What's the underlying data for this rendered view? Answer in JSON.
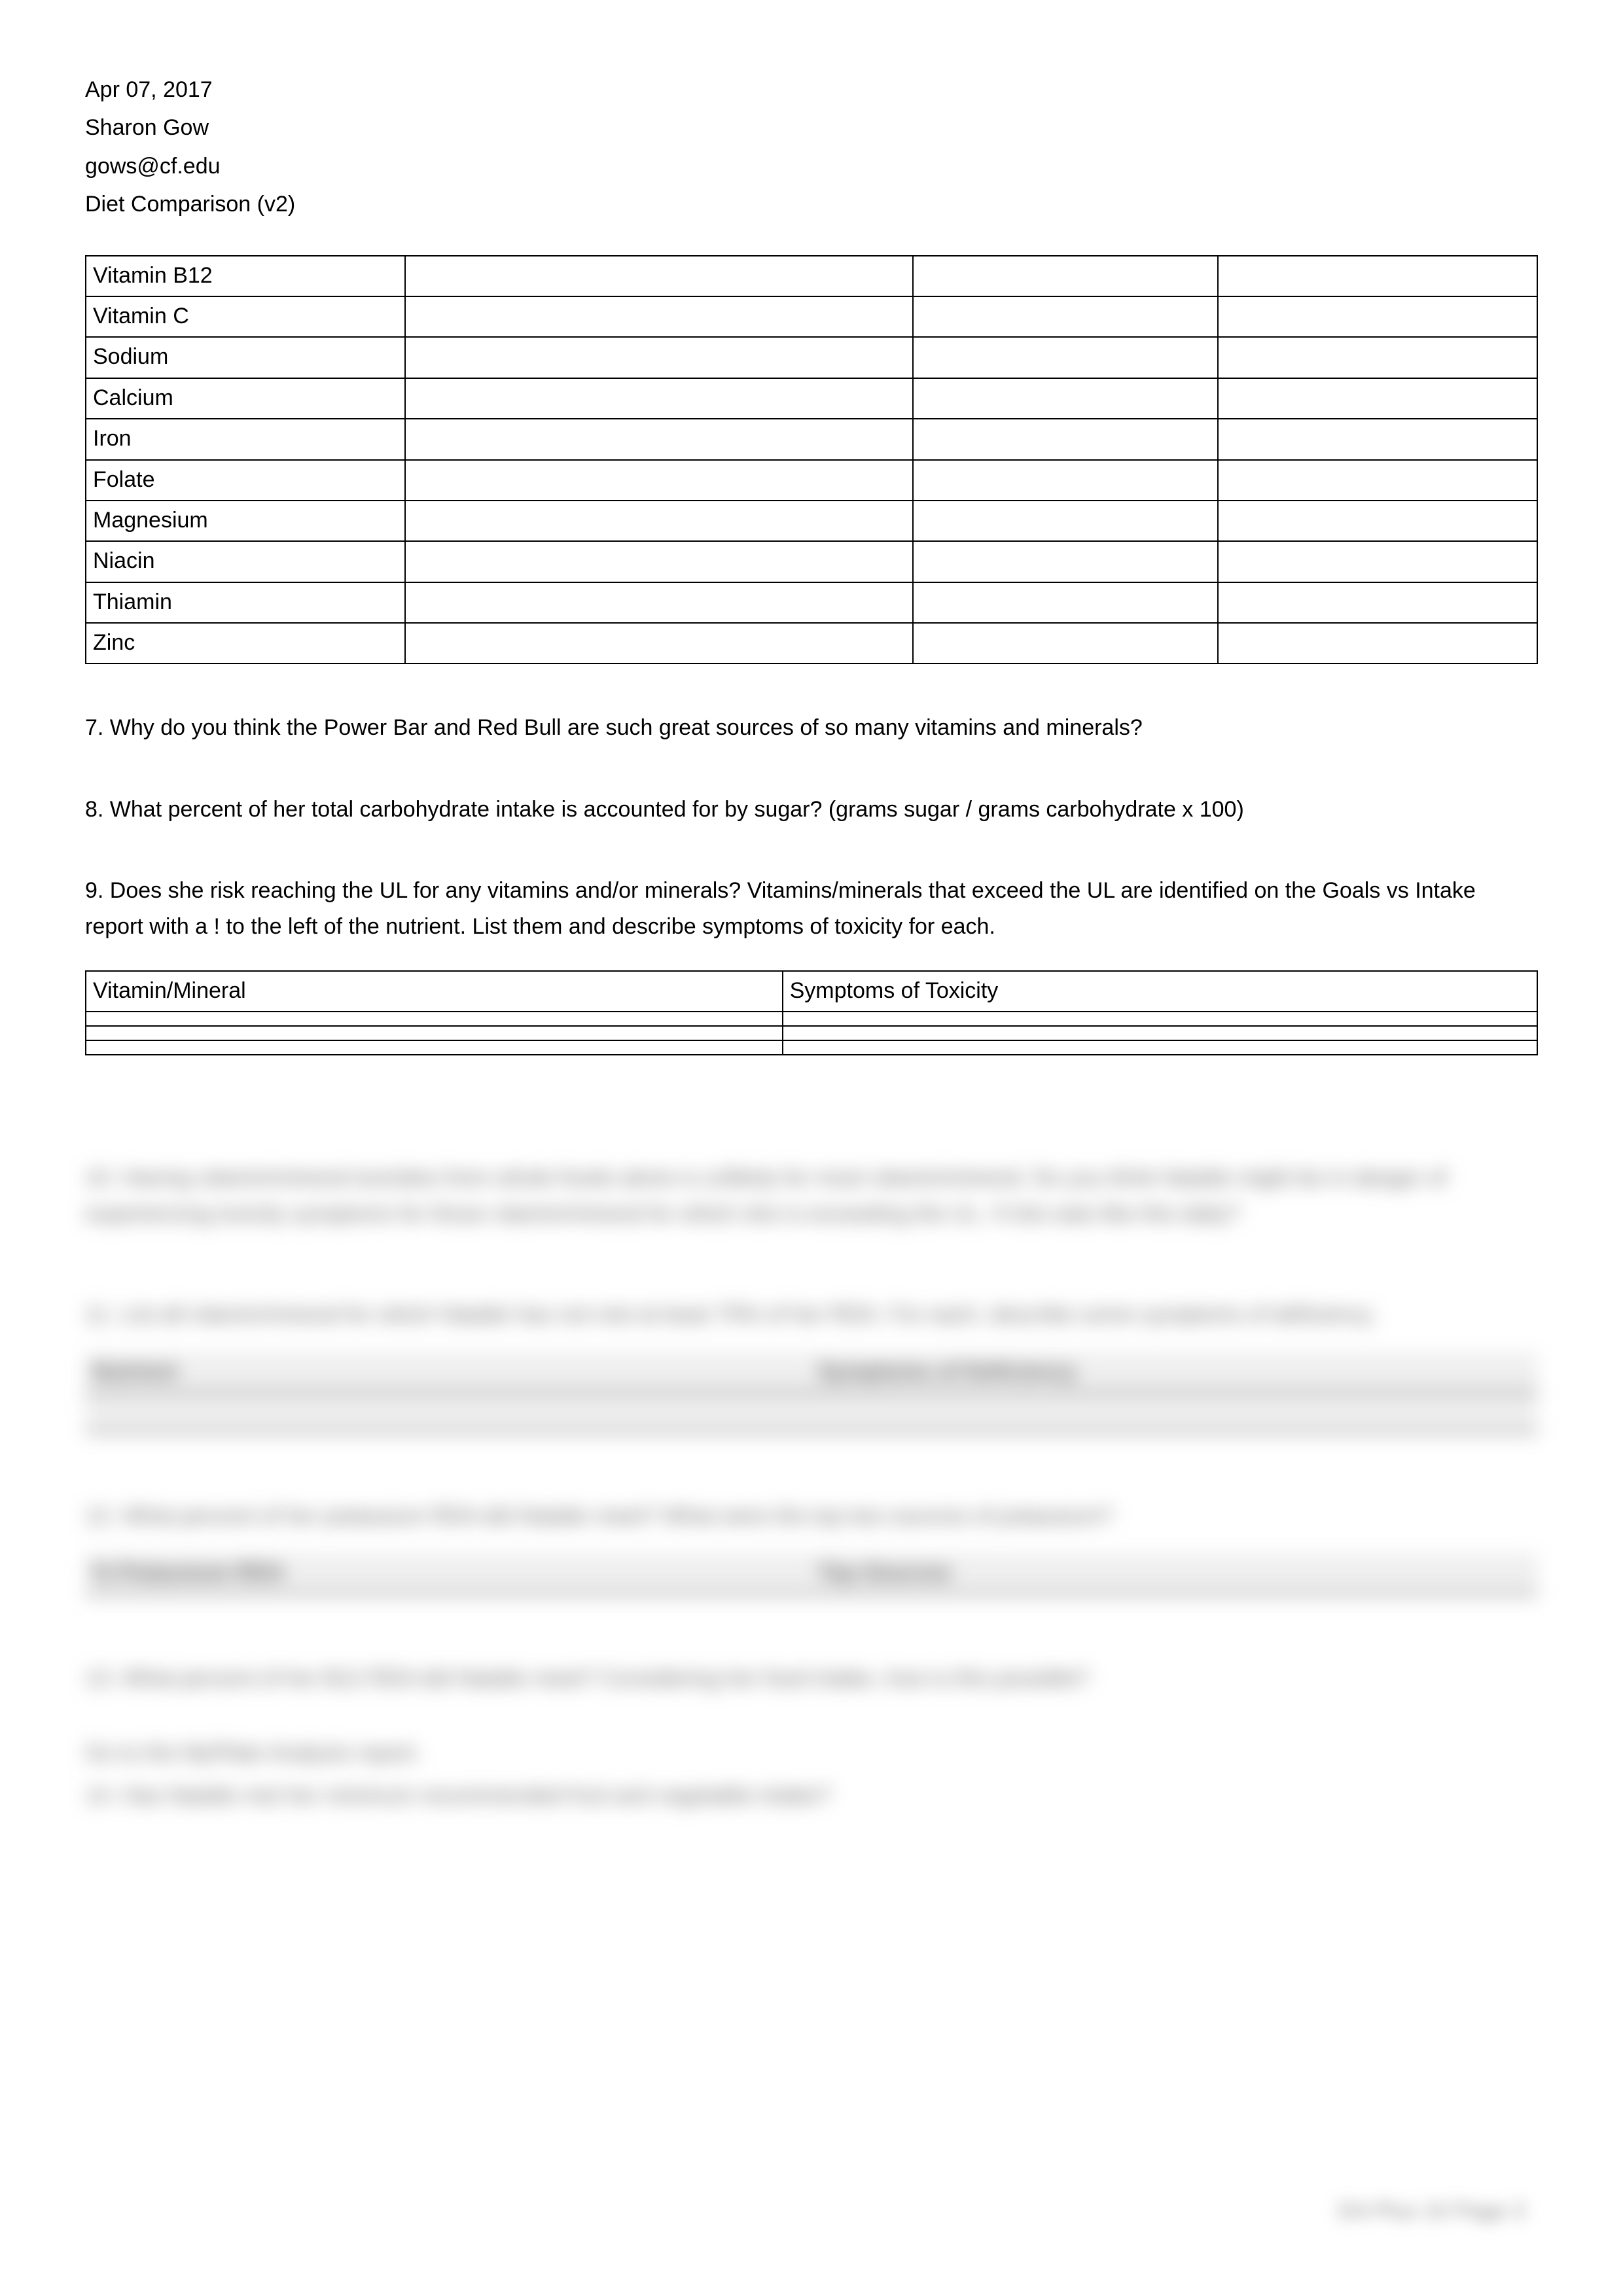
{
  "header": {
    "date": "Apr 07, 2017",
    "name": "Sharon Gow",
    "email": "gows@cf.edu",
    "title": "Diet Comparison (v2)"
  },
  "nutrients_table": {
    "rows": [
      [
        "Vitamin B12",
        "",
        "",
        ""
      ],
      [
        "Vitamin C",
        "",
        "",
        ""
      ],
      [
        "Sodium",
        "",
        "",
        ""
      ],
      [
        "Calcium",
        "",
        "",
        ""
      ],
      [
        "Iron",
        "",
        "",
        ""
      ],
      [
        "Folate",
        "",
        "",
        ""
      ],
      [
        "Magnesium",
        "",
        "",
        ""
      ],
      [
        "Niacin",
        "",
        "",
        ""
      ],
      [
        "Thiamin",
        "",
        "",
        ""
      ],
      [
        "Zinc",
        "",
        "",
        ""
      ]
    ]
  },
  "questions": {
    "q7": "7.  Why do you think the Power Bar and Red Bull are such great sources of so many vitamins and minerals?",
    "q8": "8. What percent of her total carbohydrate intake is accounted for by sugar? (grams sugar / grams carbohydrate x 100)",
    "q9": "9.  Does she risk reaching the UL for any vitamins and/or minerals?  Vitamins/minerals that exceed the UL are identified on the Goals vs Intake report with a ! to the left of the nutrient. List them and describe symptoms of toxicity for each."
  },
  "toxicity_table": {
    "headers": [
      "Vitamin/Mineral",
      "Symptoms of Toxicity"
    ],
    "rows": [
      [
        "",
        ""
      ],
      [
        "",
        ""
      ],
      [
        "",
        ""
      ]
    ]
  },
  "blurred": {
    "q10": "10.  Having vitamin/mineral toxicities from whole foods alone is unlikely for most vitamin/mineral.  Do you think Natalie might be in danger of experiencing toxicity symptoms for those vitamin/mineral for which she is exceeding the UL.  If she eats like this daily?",
    "q11": "11.  List all vitamin/mineral for which Natalie has not met at least 75% of her RDA.  For each, describe some symptoms of deficiency.",
    "def_table": {
      "headers": [
        "Nutrient",
        "Symptoms of Deficiency"
      ]
    },
    "q12": "12.  What percent of her potassium RDA did Natalie meet?  What were the top two sources of potassium?",
    "pot_table": {
      "headers": [
        "% Potassium RDA",
        "Top Sources"
      ]
    },
    "q13": "13.  What percent of her B12 RDA did Natalie meet?  Considering her food intake, how is this possible?",
    "goto": "Go to the MyPlate Analysis report.",
    "q14": "14.  Has Natalie met her minimum recommended fruit and vegetable intake?"
  },
  "footer": "DA Plus 10 Page 3"
}
